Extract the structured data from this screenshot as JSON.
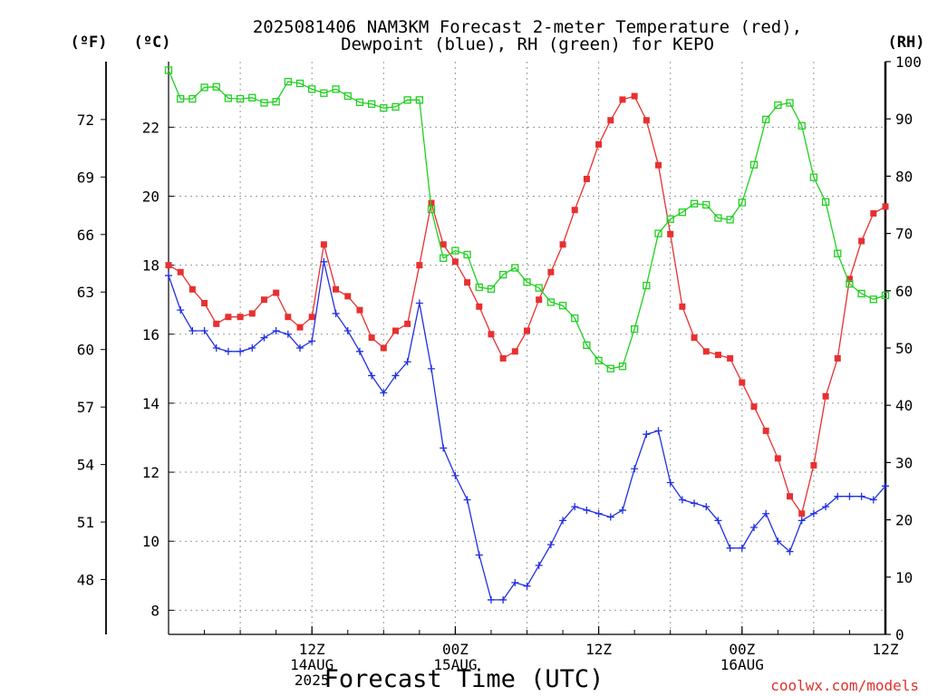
{
  "chart_data": {
    "type": "line",
    "title_line1": "2025081406 NAM3KM Forecast 2-meter Temperature (red),",
    "title_line2": "Dewpoint (blue), RH (green) for KEPO",
    "xlabel": "Forecast Time (UTC)",
    "credit": "coolwx.com/models",
    "unit_left_f": "(ºF)",
    "unit_left_c": "(ºC)",
    "unit_right": "(RH)",
    "x_ticks": [
      {
        "hour": 12,
        "lines": [
          "12Z",
          "14AUG",
          "2025"
        ]
      },
      {
        "hour": 24,
        "lines": [
          "00Z",
          "15AUG"
        ]
      },
      {
        "hour": 36,
        "lines": [
          "12Z"
        ]
      },
      {
        "hour": 48,
        "lines": [
          "00Z",
          "16AUG"
        ]
      },
      {
        "hour": 60,
        "lines": [
          "12Z"
        ]
      }
    ],
    "x_range_hours": [
      0,
      60
    ],
    "y_celsius": {
      "range": [
        7.3,
        23.9
      ],
      "ticks": [
        "8",
        "10",
        "12",
        "14",
        "16",
        "18",
        "20",
        "22"
      ]
    },
    "y_fahrenheit": {
      "ticks": [
        "48",
        "51",
        "54",
        "57",
        "60",
        "63",
        "66",
        "69",
        "72"
      ]
    },
    "y_rh": {
      "range": [
        0,
        100
      ],
      "ticks": [
        "0",
        "10",
        "20",
        "30",
        "40",
        "50",
        "60",
        "70",
        "80",
        "90",
        "100"
      ]
    },
    "grid": true,
    "x_hours": [
      0,
      1,
      2,
      3,
      4,
      5,
      6,
      7,
      8,
      9,
      10,
      11,
      12,
      13,
      14,
      15,
      16,
      17,
      18,
      19,
      20,
      21,
      22,
      23,
      24,
      25,
      26,
      27,
      28,
      29,
      30,
      31,
      32,
      33,
      34,
      35,
      36,
      37,
      38,
      39,
      40,
      41,
      42,
      43,
      44,
      45,
      46,
      47,
      48,
      49,
      50,
      51,
      52,
      53,
      54,
      55,
      56,
      57,
      58,
      59,
      60
    ],
    "series": [
      {
        "name": "Temperature",
        "unit": "C",
        "color": "#e83030",
        "marker": "filled-square",
        "values": [
          18.0,
          17.8,
          17.3,
          16.9,
          16.3,
          16.5,
          16.5,
          16.6,
          17.0,
          17.2,
          16.5,
          16.2,
          16.5,
          18.6,
          17.3,
          17.1,
          16.7,
          15.9,
          15.6,
          16.1,
          16.3,
          18.0,
          19.8,
          18.6,
          18.1,
          17.5,
          16.8,
          16.0,
          15.3,
          15.5,
          16.1,
          17.0,
          17.8,
          18.6,
          19.6,
          20.5,
          21.5,
          22.2,
          22.8,
          22.9,
          22.2,
          20.9,
          18.9,
          16.8,
          15.9,
          15.5,
          15.4,
          15.3,
          14.6,
          13.9,
          13.2,
          12.4,
          11.3,
          10.8,
          12.2,
          14.2,
          15.3,
          17.6,
          18.7,
          19.5,
          19.7
        ]
      },
      {
        "name": "Dewpoint",
        "unit": "C",
        "color": "#2030e0",
        "marker": "plus",
        "values": [
          17.7,
          16.7,
          16.1,
          16.1,
          15.6,
          15.5,
          15.5,
          15.6,
          15.9,
          16.1,
          16.0,
          15.6,
          15.8,
          18.1,
          16.6,
          16.1,
          15.5,
          14.8,
          14.3,
          14.8,
          15.2,
          16.9,
          15.0,
          12.7,
          11.9,
          11.2,
          9.6,
          8.3,
          8.3,
          8.8,
          8.7,
          9.3,
          9.9,
          10.6,
          11.0,
          10.9,
          10.8,
          10.7,
          10.9,
          12.1,
          13.1,
          13.2,
          11.7,
          11.2,
          11.1,
          11.0,
          10.6,
          9.8,
          9.8,
          10.4,
          10.8,
          10.0,
          9.7,
          10.6,
          10.8,
          11.0,
          11.3,
          11.3,
          11.3,
          11.2,
          11.6
        ]
      },
      {
        "name": "RH",
        "unit": "%",
        "color": "#20d020",
        "marker": "open-square",
        "values": [
          98.5,
          93.5,
          93.5,
          95.5,
          95.6,
          93.6,
          93.5,
          93.7,
          92.8,
          93.0,
          96.5,
          96.2,
          95.2,
          94.5,
          95.2,
          94.0,
          92.9,
          92.6,
          91.9,
          92.1,
          93.3,
          93.3,
          74.2,
          65.7,
          67.0,
          66.3,
          60.6,
          60.3,
          62.8,
          64.0,
          61.5,
          60.5,
          58.0,
          57.4,
          55.2,
          50.5,
          47.8,
          46.4,
          46.8,
          53.3,
          60.9,
          70.0,
          72.5,
          73.7,
          75.2,
          75.0,
          72.7,
          72.4,
          75.4,
          82.0,
          89.9,
          92.4,
          92.8,
          88.8,
          79.8,
          75.5,
          66.5,
          61.2,
          59.5,
          58.5,
          59.2
        ]
      }
    ]
  }
}
